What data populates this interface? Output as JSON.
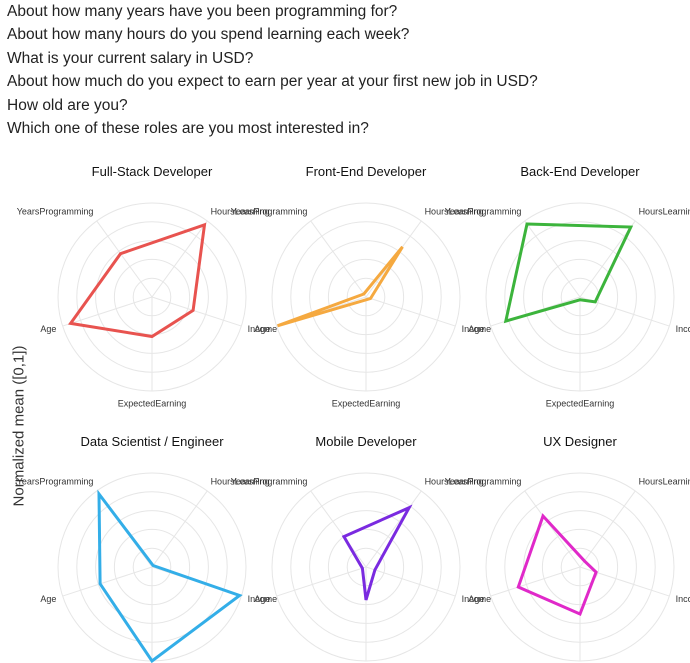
{
  "questions": [
    "About how many years have you been programming for?",
    "About how many hours do you spend learning each week?",
    "What is your current salary in USD?",
    "About how much do you expect to earn per year at your first new job in USD?",
    "How old are you?",
    "Which one of these roles are you most interested in?"
  ],
  "chart_data": {
    "type": "radar",
    "ylabel": "Normalized mean ([0,1])",
    "axes": [
      "YearsProgramming",
      "HoursLearning",
      "Income",
      "ExpectedEarning",
      "Age"
    ],
    "rlim": [
      0,
      1
    ],
    "grid": true,
    "panels": [
      {
        "title": "Full-Stack Developer",
        "color": "#e8534f",
        "values": [
          0.57,
          0.95,
          0.46,
          0.42,
          0.91
        ]
      },
      {
        "title": "Front-End Developer",
        "color": "#f5a940",
        "values": [
          0.04,
          0.66,
          0.05,
          0.03,
          0.99
        ]
      },
      {
        "title": "Back-End Developer",
        "color": "#3cb43c",
        "values": [
          0.96,
          0.92,
          0.17,
          0.03,
          0.83
        ]
      },
      {
        "title": "Data Scientist / Engineer",
        "color": "#33aee8",
        "values": [
          0.96,
          0.02,
          0.98,
          1.0,
          0.58
        ]
      },
      {
        "title": "Mobile Developer",
        "color": "#7a2ae0",
        "values": [
          0.4,
          0.78,
          0.1,
          0.35,
          0.04
        ]
      },
      {
        "title": "UX Designer",
        "color": "#e029c9",
        "values": [
          0.67,
          0.08,
          0.18,
          0.5,
          0.69
        ]
      }
    ]
  }
}
